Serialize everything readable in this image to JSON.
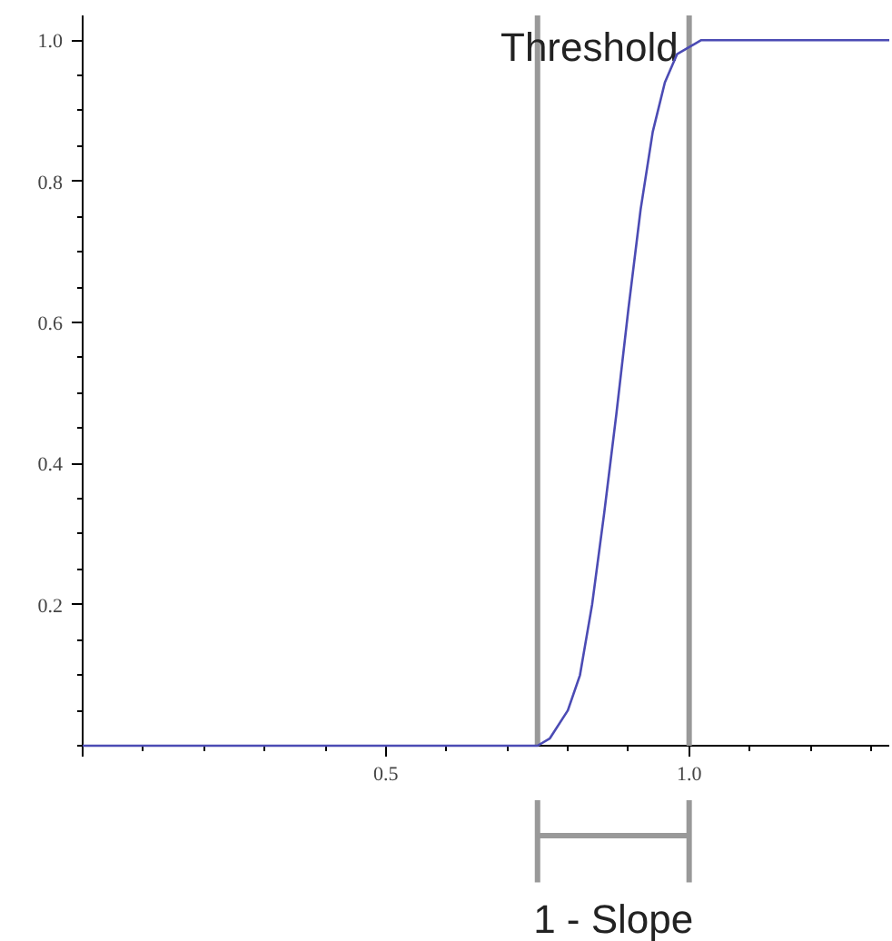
{
  "chart_data": {
    "type": "line",
    "x": [
      0,
      0.75,
      0.77,
      0.8,
      0.82,
      0.84,
      0.86,
      0.88,
      0.9,
      0.92,
      0.94,
      0.96,
      0.98,
      1.0,
      1.02,
      1.05,
      1.33
    ],
    "series": [
      {
        "color": "#4b4bb4",
        "values": [
          0,
          0,
          0.01,
          0.05,
          0.1,
          0.2,
          0.33,
          0.47,
          0.62,
          0.76,
          0.87,
          0.94,
          0.98,
          0.99,
          1.0,
          1.0,
          1.0
        ]
      }
    ],
    "xlim": [
      0,
      1.33
    ],
    "ylim": [
      0,
      1.035
    ],
    "xticks": [
      {
        "value": 0,
        "label": null
      },
      0.5,
      {
        "value": 1.0,
        "label": "1.0"
      }
    ],
    "yticks": [
      0.2,
      0.4,
      0.6,
      0.8,
      {
        "value": 1.0,
        "label": "1.0"
      }
    ],
    "ref_lines": [
      {
        "axis": "x",
        "value": 0.75,
        "color": "#999999"
      },
      {
        "axis": "x",
        "value": 1.0,
        "label": "Threshold",
        "color": "#999999"
      }
    ],
    "annotations": [
      "1 - Slope"
    ],
    "grid": false
  }
}
